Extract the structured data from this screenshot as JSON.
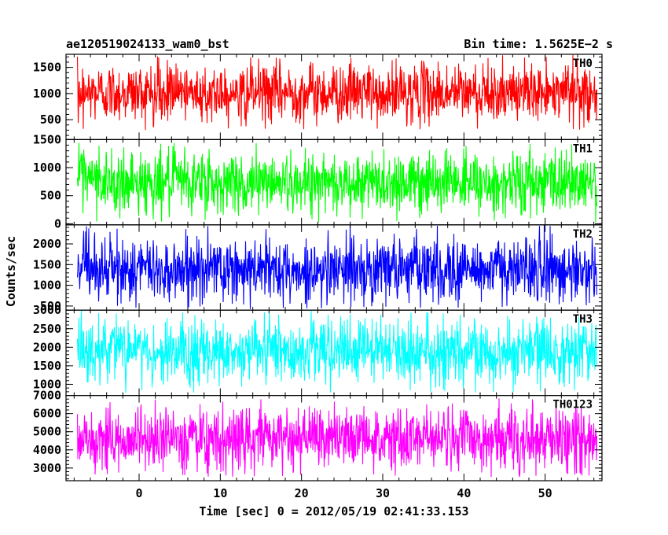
{
  "header": {
    "left_title": "ae120519024133_wam0_bst",
    "right_title": "Bin time: 1.5625E−2 s"
  },
  "chart_data": {
    "type": "line",
    "xlabel": "Time [sec] 0 = 2012/05/19 02:41:33.153",
    "ylabel": "Counts/sec",
    "xlim": [
      -9,
      57
    ],
    "x_ticks": [
      0,
      10,
      20,
      30,
      40,
      50
    ],
    "x_tick_labels": [
      "0",
      "10",
      "20",
      "30",
      "40",
      "50"
    ],
    "data_x_range": [
      -7.6,
      56.4
    ],
    "panels": [
      {
        "name": "TH0",
        "color": "#ff0000",
        "ylim": [
          120,
          1750
        ],
        "y_ticks": [
          500,
          1000,
          1500
        ],
        "y_tick_labels": [
          "500",
          "1000",
          "1500"
        ],
        "mean": 1020,
        "approx_min": 300,
        "approx_max": 1750
      },
      {
        "name": "TH1",
        "color": "#00ff00",
        "ylim": [
          -20,
          1500
        ],
        "y_ticks": [
          0,
          500,
          1000,
          1500
        ],
        "y_tick_labels": [
          "0",
          "500",
          "1000",
          "1500"
        ],
        "mean": 740,
        "approx_min": 20,
        "approx_max": 1500
      },
      {
        "name": "TH2",
        "color": "#0000ff",
        "ylim": [
          400,
          2460
        ],
        "y_ticks": [
          500,
          1000,
          1500,
          2000
        ],
        "y_tick_labels": [
          "500",
          "1000",
          "1500",
          "2000"
        ],
        "mean": 1380,
        "approx_min": 420,
        "approx_max": 2460
      },
      {
        "name": "TH3",
        "color": "#00ffff",
        "ylim": [
          700,
          3000
        ],
        "y_ticks": [
          1000,
          1500,
          2000,
          2500,
          3000
        ],
        "y_tick_labels": [
          "1000",
          "1500",
          "2000",
          "2500",
          "3000"
        ],
        "mean": 1880,
        "approx_min": 750,
        "approx_max": 3000
      },
      {
        "name": "TH0123",
        "color": "#ff00ff",
        "ylim": [
          2300,
          7000
        ],
        "y_ticks": [
          3000,
          4000,
          5000,
          6000,
          7000
        ],
        "y_tick_labels": [
          "3000",
          "4000",
          "5000",
          "6000",
          "7000"
        ],
        "mean": 4600,
        "approx_min": 2500,
        "approx_max": 6900
      }
    ]
  }
}
